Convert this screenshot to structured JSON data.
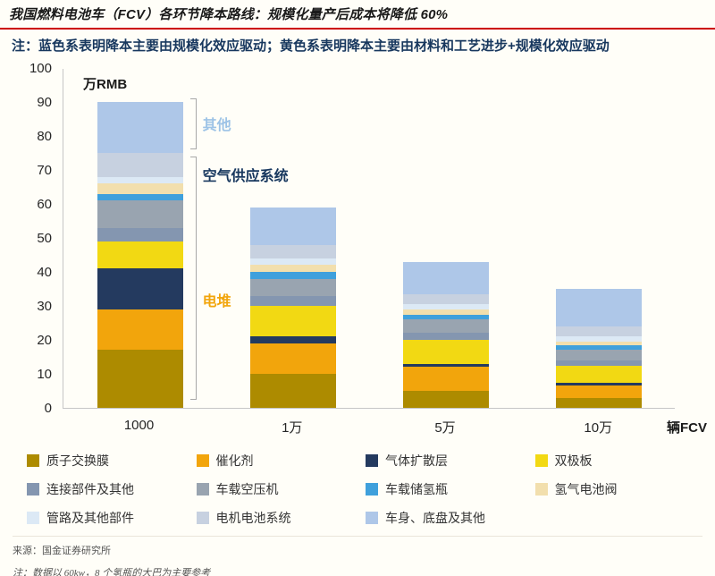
{
  "header": {
    "title": "我国燃料电池车（FCV）各环节降本路线：规模化量产后成本将降低 60%",
    "note": "注：蓝色系表明降本主要由规模化效应驱动；黄色系表明降本主要由材料和工艺进步+规模化效应驱动"
  },
  "chart_data": {
    "type": "bar",
    "stacked": true,
    "title": "",
    "ylabel": "万RMB",
    "xlabel": "",
    "x_unit_label": "辆FCV",
    "ylim": [
      0,
      100
    ],
    "yticks": [
      0,
      10,
      20,
      30,
      40,
      50,
      60,
      70,
      80,
      90,
      100
    ],
    "grid": false,
    "legend_position": "bottom",
    "categories": [
      "1000",
      "1万",
      "5万",
      "10万"
    ],
    "totals": [
      90,
      59,
      43,
      35
    ],
    "series": [
      {
        "name": "质子交换膜",
        "color": "#AD8B00",
        "values": [
          17,
          10,
          5,
          3
        ]
      },
      {
        "name": "催化剂",
        "color": "#F2A50C",
        "values": [
          12,
          9,
          7,
          3.5
        ]
      },
      {
        "name": "气体扩散层",
        "color": "#243A5F",
        "values": [
          12,
          2,
          1,
          1
        ]
      },
      {
        "name": "双极板",
        "color": "#F2D913",
        "values": [
          8,
          9,
          7,
          5
        ]
      },
      {
        "name": "连接部件及其他",
        "color": "#8496B0",
        "values": [
          4,
          3,
          2,
          1.5
        ]
      },
      {
        "name": "车载空压机",
        "color": "#99A4B0",
        "values": [
          8,
          5,
          4,
          3
        ]
      },
      {
        "name": "车载储氢瓶",
        "color": "#3FA0DC",
        "values": [
          2,
          2,
          1.5,
          1.5
        ]
      },
      {
        "name": "氢气电池阀",
        "color": "#F2DFAD",
        "values": [
          3,
          2,
          1.5,
          1
        ]
      },
      {
        "name": "管路及其他部件",
        "color": "#DCE9F5",
        "values": [
          2,
          2,
          1.5,
          1.5
        ]
      },
      {
        "name": "电机电池系统",
        "color": "#C7D1E0",
        "values": [
          7,
          4,
          3,
          3
        ]
      },
      {
        "name": "车身、底盘及其他",
        "color": "#AEC7E8",
        "values": [
          15,
          11,
          9.5,
          11
        ]
      }
    ],
    "annotations": [
      {
        "id": "other",
        "label": "其他",
        "color": "#9DC3E6",
        "value": 83
      },
      {
        "id": "air-supply",
        "label": "空气供应系统",
        "color": "#17375E",
        "value": 68
      },
      {
        "id": "stack",
        "label": "电堆",
        "color": "#F2A50C",
        "value": 31
      }
    ],
    "brackets": [
      {
        "from": 76,
        "to": 91
      },
      {
        "from": 2.5,
        "to": 74
      }
    ]
  },
  "footer": {
    "source": "来源：国金证券研究所",
    "note": "注：数据以 60kw，8 个氢瓶的大巴为主要参考"
  }
}
